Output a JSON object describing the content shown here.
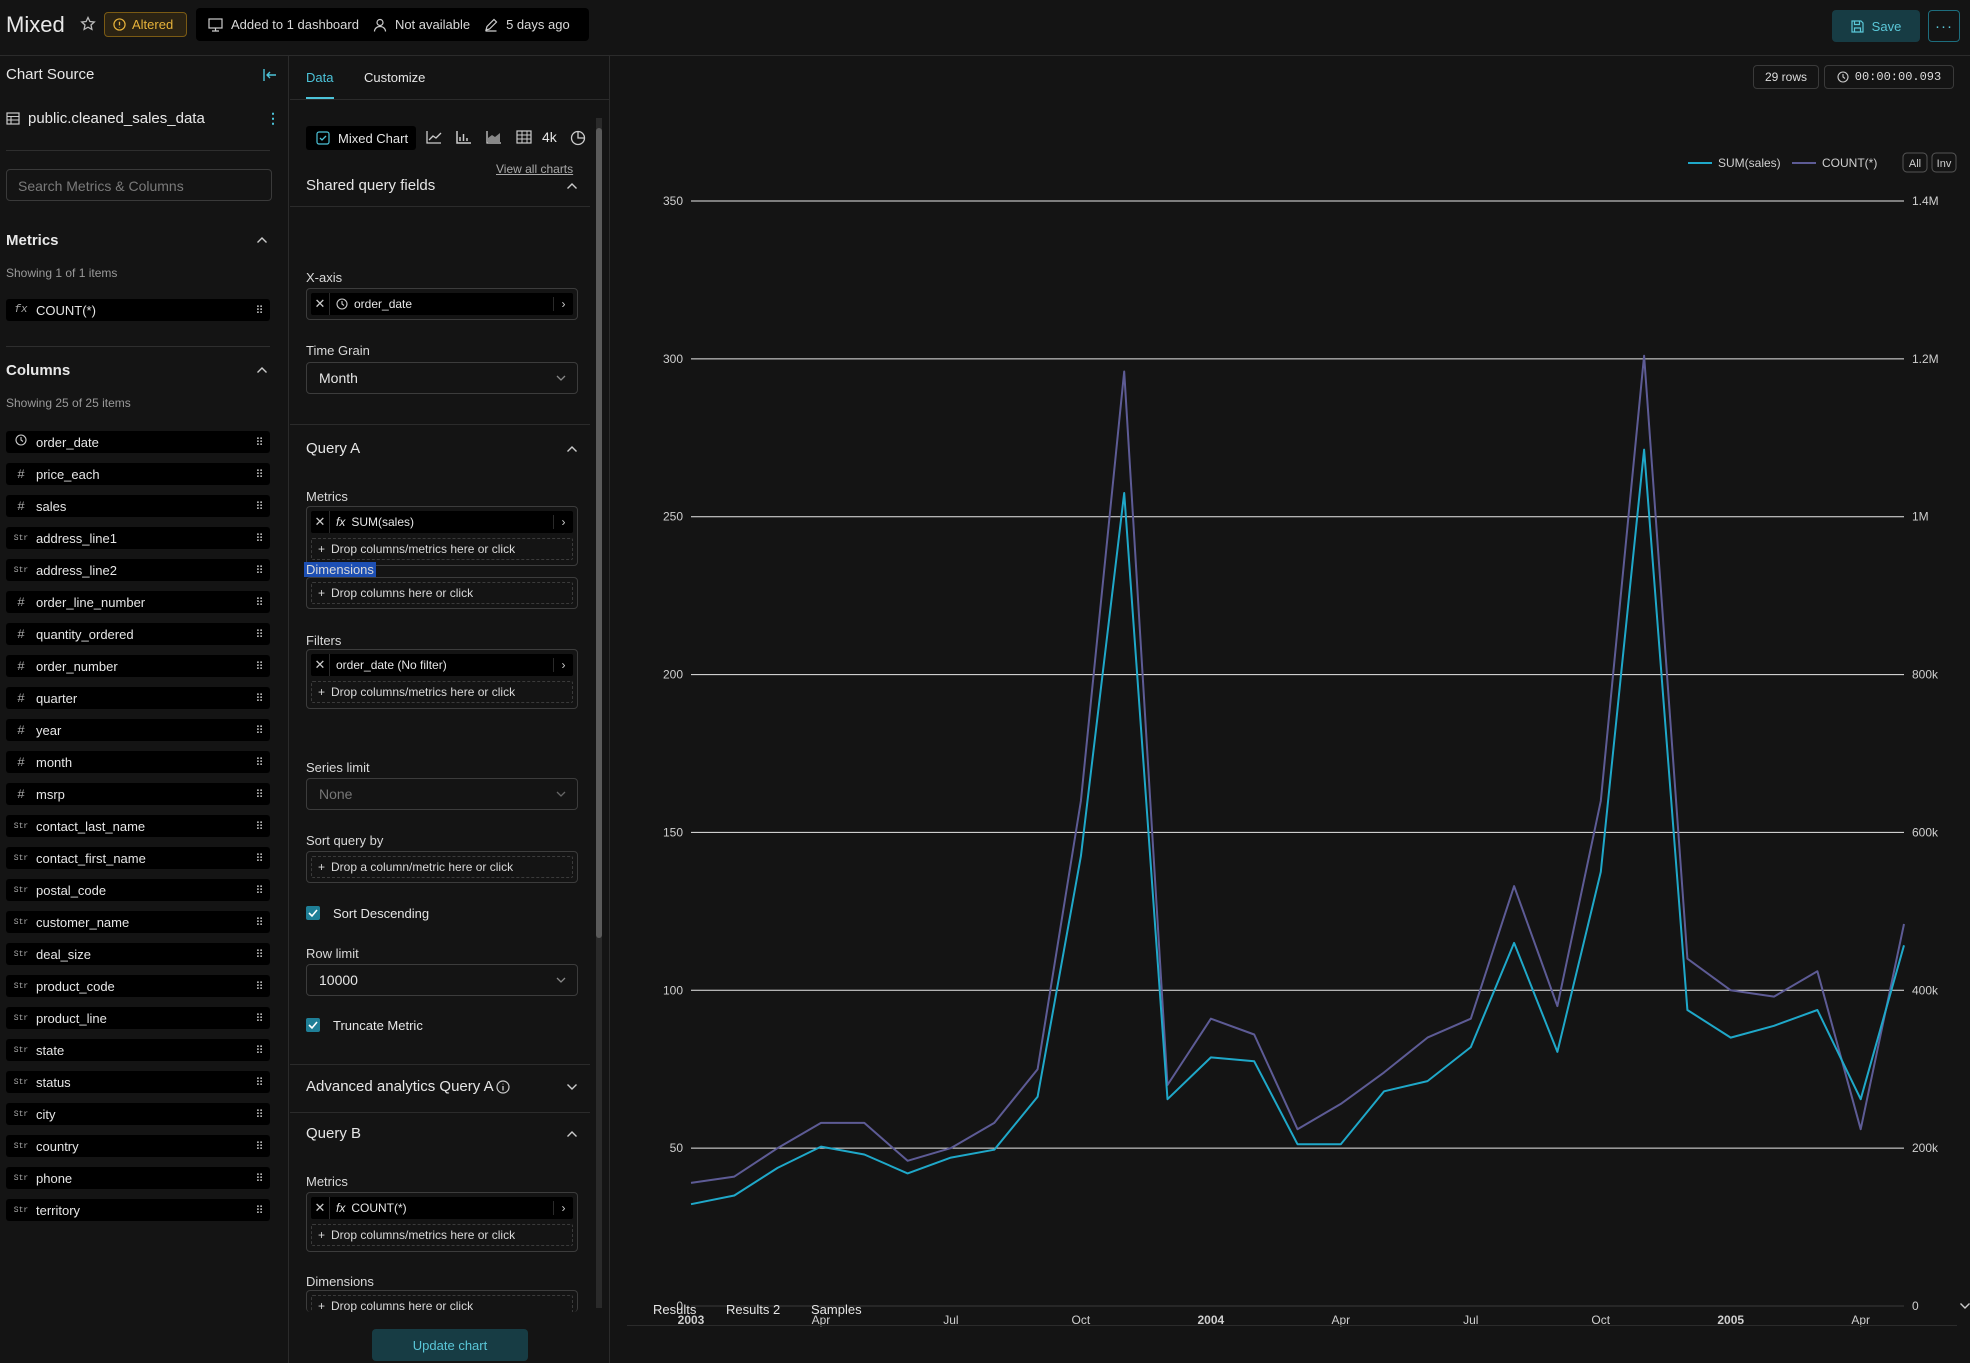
{
  "header": {
    "title": "Mixed",
    "altered_label": "Altered",
    "dashboards_label": "Added to 1 dashboard",
    "owner_label": "Not available",
    "modified_label": "5 days ago",
    "save_label": "Save",
    "more_label": "···"
  },
  "source": {
    "heading": "Chart Source",
    "dataset": "public.cleaned_sales_data",
    "search_placeholder": "Search Metrics & Columns",
    "metrics_heading": "Metrics",
    "metrics_count": "Showing 1 of 1 items",
    "metrics": [
      {
        "icon": "fx",
        "label": "COUNT(*)"
      }
    ],
    "columns_heading": "Columns",
    "columns_count": "Showing 25 of 25 items",
    "columns": [
      {
        "type": "time",
        "label": "order_date"
      },
      {
        "type": "#",
        "label": "price_each"
      },
      {
        "type": "#",
        "label": "sales"
      },
      {
        "type": "Str",
        "label": "address_line1"
      },
      {
        "type": "Str",
        "label": "address_line2"
      },
      {
        "type": "#",
        "label": "order_line_number"
      },
      {
        "type": "#",
        "label": "quantity_ordered"
      },
      {
        "type": "#",
        "label": "order_number"
      },
      {
        "type": "#",
        "label": "quarter"
      },
      {
        "type": "#",
        "label": "year"
      },
      {
        "type": "#",
        "label": "month"
      },
      {
        "type": "#",
        "label": "msrp"
      },
      {
        "type": "Str",
        "label": "contact_last_name"
      },
      {
        "type": "Str",
        "label": "contact_first_name"
      },
      {
        "type": "Str",
        "label": "postal_code"
      },
      {
        "type": "Str",
        "label": "customer_name"
      },
      {
        "type": "Str",
        "label": "deal_size"
      },
      {
        "type": "Str",
        "label": "product_code"
      },
      {
        "type": "Str",
        "label": "product_line"
      },
      {
        "type": "Str",
        "label": "state"
      },
      {
        "type": "Str",
        "label": "status"
      },
      {
        "type": "Str",
        "label": "city"
      },
      {
        "type": "Str",
        "label": "country"
      },
      {
        "type": "Str",
        "label": "phone"
      },
      {
        "type": "Str",
        "label": "territory"
      }
    ]
  },
  "controls": {
    "tab_data": "Data",
    "tab_customize": "Customize",
    "chart_type": "Mixed Chart",
    "chart_type_4k": "4k",
    "view_all": "View all charts",
    "shared_heading": "Shared query fields",
    "xaxis_label": "X-axis",
    "xaxis_value": "order_date",
    "timegrain_label": "Time Grain",
    "timegrain_value": "Month",
    "queryA_heading": "Query A",
    "metrics_label": "Metrics",
    "metricA_value": "SUM(sales)",
    "drop_metrics": "Drop columns/metrics here or click",
    "dimensions_label": "Dimensions",
    "drop_columns": "Drop columns here or click",
    "filters_label": "Filters",
    "filter_value": "order_date (No filter)",
    "series_limit_label": "Series limit",
    "series_limit_value": "None",
    "sort_label": "Sort query by",
    "sort_drop": "Drop a column/metric here or click",
    "sort_desc_label": "Sort Descending",
    "row_limit_label": "Row limit",
    "row_limit_value": "10000",
    "truncate_label": "Truncate Metric",
    "advanced_heading": "Advanced analytics Query A",
    "queryB_heading": "Query B",
    "metricB_value": "COUNT(*)",
    "update_label": "Update chart"
  },
  "results": {
    "rows_badge": "29 rows",
    "time_badge": "00:00:00.093",
    "tabs": [
      "Results",
      "Results 2",
      "Samples"
    ]
  },
  "colors": {
    "sales": "#1fa8c9",
    "count": "#5d5b95",
    "accent": "#4cc3d9"
  },
  "chart_data": {
    "type": "line",
    "legend": [
      "SUM(sales)",
      "COUNT(*)"
    ],
    "legend_buttons": [
      "All",
      "Inv"
    ],
    "x_ticks": [
      {
        "m": 0,
        "label": "2003",
        "bold": true
      },
      {
        "m": 3,
        "label": "Apr"
      },
      {
        "m": 6,
        "label": "Jul"
      },
      {
        "m": 9,
        "label": "Oct"
      },
      {
        "m": 12,
        "label": "2004",
        "bold": true
      },
      {
        "m": 15,
        "label": "Apr"
      },
      {
        "m": 18,
        "label": "Jul"
      },
      {
        "m": 21,
        "label": "Oct"
      },
      {
        "m": 24,
        "label": "2005",
        "bold": true
      },
      {
        "m": 27,
        "label": "Apr"
      }
    ],
    "y_left": {
      "min": 0,
      "max": 350,
      "ticks": [
        0,
        50,
        100,
        150,
        200,
        250,
        300,
        350
      ]
    },
    "y_right": {
      "min": 0,
      "max": 1400000,
      "ticks": [
        "0",
        "200k",
        "400k",
        "600k",
        "800k",
        "1M",
        "1.2M",
        "1.4M"
      ]
    },
    "series": [
      {
        "name": "COUNT(*)",
        "axis": "left",
        "values": [
          39,
          41,
          50,
          58,
          58,
          46,
          50,
          58,
          75,
          160,
          296,
          70,
          91,
          86,
          56,
          64,
          74,
          85,
          91,
          133,
          95,
          160,
          301,
          110,
          100,
          98,
          106,
          56,
          121
        ]
      },
      {
        "name": "SUM(sales)",
        "axis": "right",
        "values": [
          129000,
          140000,
          175000,
          202000,
          192000,
          168000,
          188000,
          198000,
          265000,
          570000,
          1030000,
          262000,
          315000,
          310000,
          205000,
          205000,
          272000,
          285000,
          328000,
          460000,
          322000,
          550000,
          1085000,
          375000,
          340000,
          355000,
          375000,
          262000,
          457000
        ]
      }
    ]
  }
}
